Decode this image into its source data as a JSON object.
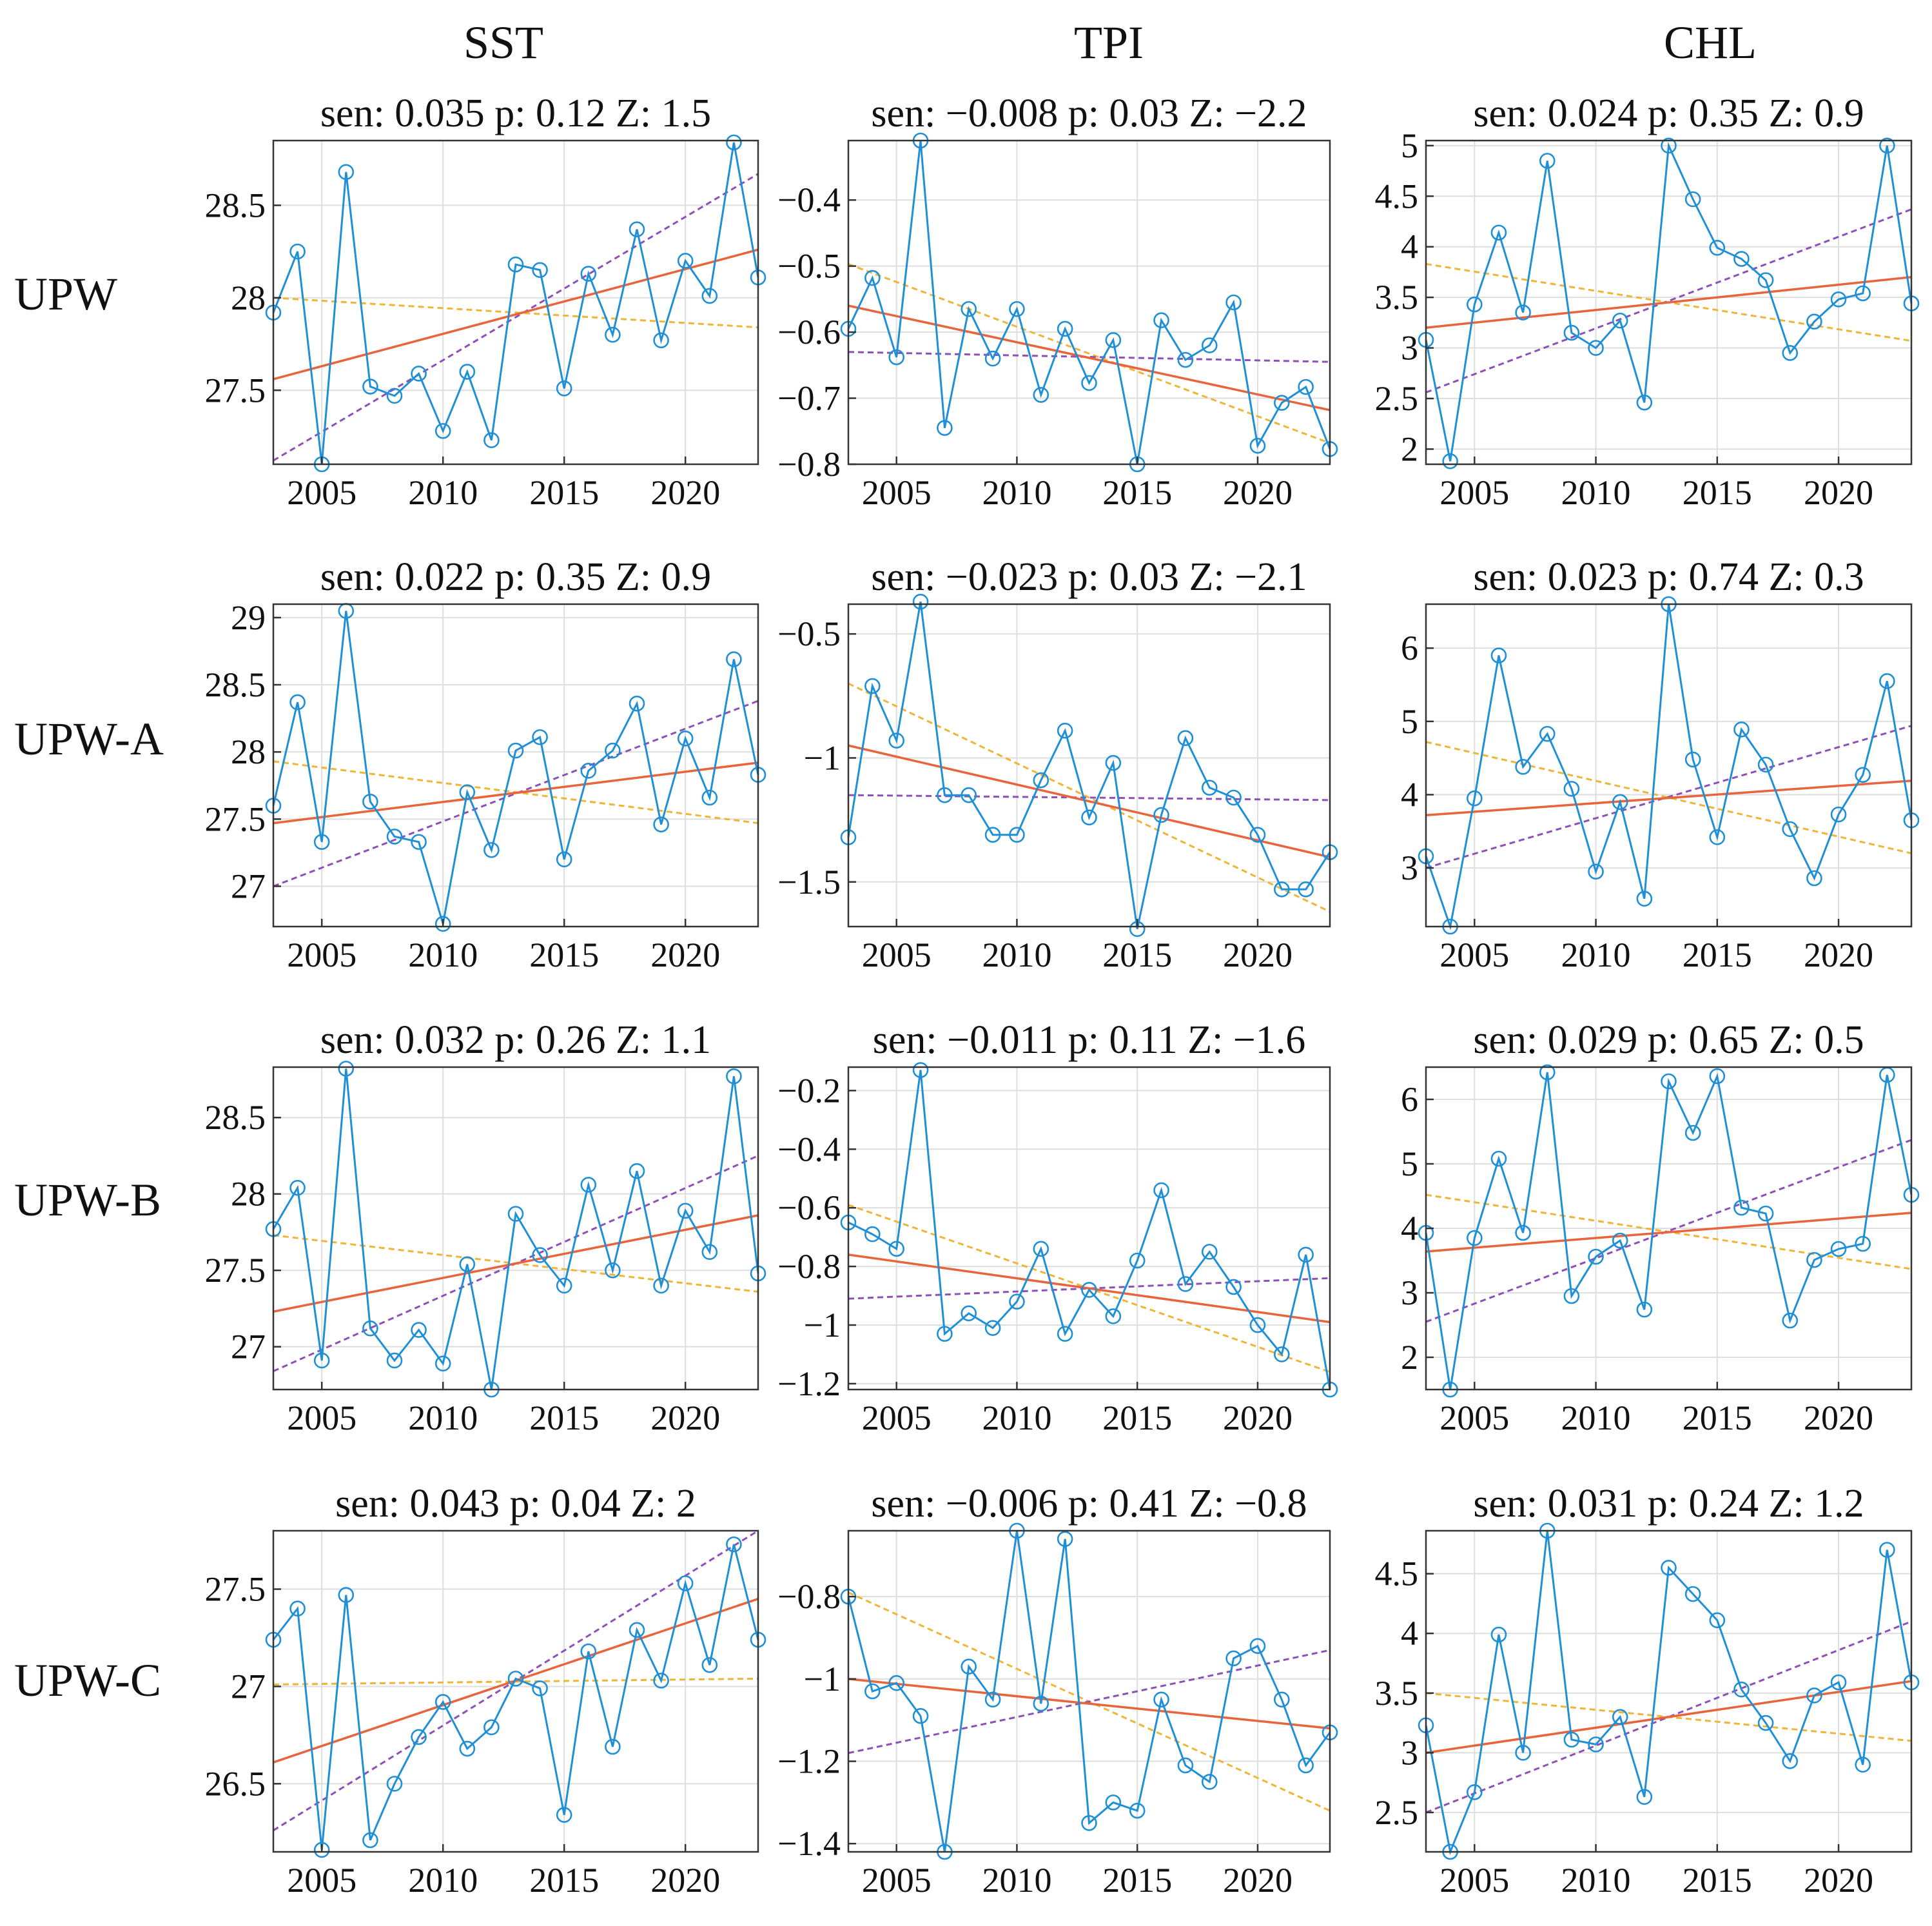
{
  "colors": {
    "data": "#1f8fd6",
    "sen": "#e8643c",
    "ci_low": "#f0b536",
    "ci_high": "#8e4fb8",
    "grid": "#dedede",
    "axis": "#333333"
  },
  "column_titles": [
    "SST",
    "TPI",
    "CHL"
  ],
  "row_labels": [
    "UPW",
    "UPW-A",
    "UPW-B",
    "UPW-C"
  ],
  "chart_data": [
    {
      "type": "line",
      "row": "UPW",
      "column": "SST",
      "title": "sen: 0.035  p: 0.12  Z: 1.5",
      "x": [
        2003,
        2004,
        2005,
        2006,
        2007,
        2008,
        2009,
        2010,
        2011,
        2012,
        2013,
        2014,
        2015,
        2016,
        2017,
        2018,
        2019,
        2020,
        2021,
        2022,
        2023
      ],
      "values": [
        27.92,
        28.25,
        27.1,
        28.68,
        27.52,
        27.47,
        27.59,
        27.28,
        27.6,
        27.23,
        28.18,
        28.15,
        27.51,
        28.13,
        27.8,
        28.37,
        27.77,
        28.2,
        28.01,
        28.84,
        28.11
      ],
      "sen_line": [
        27.56,
        28.26
      ],
      "ci_low_line": [
        28.0,
        27.84
      ],
      "ci_high_line": [
        27.12,
        28.67
      ],
      "xlim": [
        2003,
        2023
      ],
      "ylim": [
        27.1,
        28.85
      ],
      "yticks": [
        27.5,
        28,
        28.5
      ],
      "yticklabels": [
        "27.5",
        "28",
        "28.5"
      ],
      "xticks": [
        2005,
        2010,
        2015,
        2020
      ],
      "xticklabels": [
        "2005",
        "2010",
        "2015",
        "2020"
      ]
    },
    {
      "type": "line",
      "row": "UPW",
      "column": "TPI",
      "title": "sen: −0.008  p: 0.03  Z: −2.2",
      "x": [
        2003,
        2004,
        2005,
        2006,
        2007,
        2008,
        2009,
        2010,
        2011,
        2012,
        2013,
        2014,
        2015,
        2016,
        2017,
        2018,
        2019,
        2020,
        2021,
        2022,
        2023
      ],
      "values": [
        -0.595,
        -0.518,
        -0.638,
        -0.31,
        -0.745,
        -0.565,
        -0.64,
        -0.565,
        -0.695,
        -0.595,
        -0.677,
        -0.612,
        -0.8,
        -0.582,
        -0.642,
        -0.62,
        -0.555,
        -0.772,
        -0.707,
        -0.683,
        -0.777
      ],
      "sen_line": [
        -0.56,
        -0.718
      ],
      "ci_low_line": [
        -0.497,
        -0.768
      ],
      "ci_high_line": [
        -0.63,
        -0.645
      ],
      "xlim": [
        2003,
        2023
      ],
      "ylim": [
        -0.8,
        -0.31
      ],
      "yticks": [
        -0.8,
        -0.7,
        -0.6,
        -0.5,
        -0.4
      ],
      "yticklabels": [
        "−0.8",
        "−0.7",
        "−0.6",
        "−0.5",
        "−0.4"
      ],
      "xticks": [
        2005,
        2010,
        2015,
        2020
      ],
      "xticklabels": [
        "2005",
        "2010",
        "2015",
        "2020"
      ]
    },
    {
      "type": "line",
      "row": "UPW",
      "column": "CHL",
      "title": "sen: 0.024  p: 0.35  Z: 0.9",
      "x": [
        2003,
        2004,
        2005,
        2006,
        2007,
        2008,
        2009,
        2010,
        2011,
        2012,
        2013,
        2014,
        2015,
        2016,
        2017,
        2018,
        2019,
        2020,
        2021,
        2022,
        2023
      ],
      "values": [
        3.08,
        1.88,
        3.43,
        4.14,
        3.35,
        4.85,
        3.15,
        3.0,
        3.27,
        2.46,
        5.0,
        4.47,
        3.99,
        3.88,
        3.67,
        2.95,
        3.26,
        3.48,
        3.54,
        5.0,
        3.44
      ],
      "sen_line": [
        3.2,
        3.7
      ],
      "ci_low_line": [
        3.83,
        3.07
      ],
      "ci_high_line": [
        2.56,
        4.37
      ],
      "xlim": [
        2003,
        2023
      ],
      "ylim": [
        1.85,
        5.05
      ],
      "yticks": [
        2,
        2.5,
        3,
        3.5,
        4,
        4.5,
        5
      ],
      "yticklabels": [
        "2",
        "2.5",
        "3",
        "3.5",
        "4",
        "4.5",
        "5"
      ],
      "xticks": [
        2005,
        2010,
        2015,
        2020
      ],
      "xticklabels": [
        "2005",
        "2010",
        "2015",
        "2020"
      ]
    },
    {
      "type": "line",
      "row": "UPW-A",
      "column": "SST",
      "title": "sen: 0.022  p: 0.35  Z: 0.9",
      "x": [
        2003,
        2004,
        2005,
        2006,
        2007,
        2008,
        2009,
        2010,
        2011,
        2012,
        2013,
        2014,
        2015,
        2016,
        2017,
        2018,
        2019,
        2020,
        2021,
        2022,
        2023
      ],
      "values": [
        27.6,
        28.37,
        27.33,
        29.05,
        27.63,
        27.37,
        27.33,
        26.72,
        27.7,
        27.27,
        28.01,
        28.11,
        27.2,
        27.86,
        28.01,
        28.36,
        27.46,
        28.1,
        27.66,
        28.69,
        27.83
      ],
      "sen_line": [
        27.47,
        27.92
      ],
      "ci_low_line": [
        27.93,
        27.47
      ],
      "ci_high_line": [
        27.0,
        28.38
      ],
      "xlim": [
        2003,
        2023
      ],
      "ylim": [
        26.7,
        29.1
      ],
      "yticks": [
        27,
        27.5,
        28,
        28.5,
        29
      ],
      "yticklabels": [
        "27",
        "27.5",
        "28",
        "28.5",
        "29"
      ],
      "xticks": [
        2005,
        2010,
        2015,
        2020
      ],
      "xticklabels": [
        "2005",
        "2010",
        "2015",
        "2020"
      ]
    },
    {
      "type": "line",
      "row": "UPW-A",
      "column": "TPI",
      "title": "sen: −0.023  p: 0.03  Z: −2.1",
      "x": [
        2003,
        2004,
        2005,
        2006,
        2007,
        2008,
        2009,
        2010,
        2011,
        2012,
        2013,
        2014,
        2015,
        2016,
        2017,
        2018,
        2019,
        2020,
        2021,
        2022,
        2023
      ],
      "values": [
        -1.32,
        -0.71,
        -0.93,
        -0.37,
        -1.15,
        -1.15,
        -1.31,
        -1.31,
        -1.09,
        -0.89,
        -1.24,
        -1.02,
        -1.69,
        -1.23,
        -0.92,
        -1.12,
        -1.16,
        -1.31,
        -1.53,
        -1.53,
        -1.38
      ],
      "sen_line": [
        -0.95,
        -1.4
      ],
      "ci_low_line": [
        -0.7,
        -1.62
      ],
      "ci_high_line": [
        -1.15,
        -1.17
      ],
      "xlim": [
        2003,
        2023
      ],
      "ylim": [
        -1.68,
        -0.38
      ],
      "yticks": [
        -1.5,
        -1,
        -0.5
      ],
      "yticklabels": [
        "−1.5",
        "−1",
        "−0.5"
      ],
      "xticks": [
        2005,
        2010,
        2015,
        2020
      ],
      "xticklabels": [
        "2005",
        "2010",
        "2015",
        "2020"
      ]
    },
    {
      "type": "line",
      "row": "UPW-A",
      "column": "CHL",
      "title": "sen: 0.023  p: 0.74  Z: 0.3",
      "x": [
        2003,
        2004,
        2005,
        2006,
        2007,
        2008,
        2009,
        2010,
        2011,
        2012,
        2013,
        2014,
        2015,
        2016,
        2017,
        2018,
        2019,
        2020,
        2021,
        2022,
        2023
      ],
      "values": [
        3.16,
        2.2,
        3.95,
        5.9,
        4.38,
        4.83,
        4.08,
        2.95,
        3.9,
        2.58,
        6.6,
        4.48,
        3.42,
        4.89,
        4.41,
        3.53,
        2.86,
        3.73,
        4.27,
        5.55,
        3.65
      ],
      "sen_line": [
        3.72,
        4.19
      ],
      "ci_low_line": [
        4.72,
        3.2
      ],
      "ci_high_line": [
        3.0,
        4.94
      ],
      "xlim": [
        2003,
        2023
      ],
      "ylim": [
        2.2,
        6.6
      ],
      "yticks": [
        3,
        4,
        5,
        6
      ],
      "yticklabels": [
        "3",
        "4",
        "5",
        "6"
      ],
      "xticks": [
        2005,
        2010,
        2015,
        2020
      ],
      "xticklabels": [
        "2005",
        "2010",
        "2015",
        "2020"
      ]
    },
    {
      "type": "line",
      "row": "UPW-B",
      "column": "SST",
      "title": "sen: 0.032  p: 0.26  Z: 1.1",
      "x": [
        2003,
        2004,
        2005,
        2006,
        2007,
        2008,
        2009,
        2010,
        2011,
        2012,
        2013,
        2014,
        2015,
        2016,
        2017,
        2018,
        2019,
        2020,
        2021,
        2022,
        2023
      ],
      "values": [
        27.77,
        28.04,
        26.91,
        28.82,
        27.12,
        26.91,
        27.11,
        26.89,
        27.54,
        26.72,
        27.87,
        27.6,
        27.4,
        28.06,
        27.5,
        28.15,
        27.4,
        27.89,
        27.62,
        28.77,
        27.48
      ],
      "sen_line": [
        27.23,
        27.86
      ],
      "ci_low_line": [
        27.73,
        27.36
      ],
      "ci_high_line": [
        26.84,
        28.25
      ],
      "xlim": [
        2003,
        2023
      ],
      "ylim": [
        26.72,
        28.83
      ],
      "yticks": [
        27,
        27.5,
        28,
        28.5
      ],
      "yticklabels": [
        "27",
        "27.5",
        "28",
        "28.5"
      ],
      "xticks": [
        2005,
        2010,
        2015,
        2020
      ],
      "xticklabels": [
        "2005",
        "2010",
        "2015",
        "2020"
      ]
    },
    {
      "type": "line",
      "row": "UPW-B",
      "column": "TPI",
      "title": "sen: −0.011  p: 0.11  Z: −1.6",
      "x": [
        2003,
        2004,
        2005,
        2006,
        2007,
        2008,
        2009,
        2010,
        2011,
        2012,
        2013,
        2014,
        2015,
        2016,
        2017,
        2018,
        2019,
        2020,
        2021,
        2022,
        2023
      ],
      "values": [
        -0.65,
        -0.69,
        -0.74,
        -0.13,
        -1.03,
        -0.96,
        -1.01,
        -0.92,
        -0.74,
        -1.03,
        -0.88,
        -0.97,
        -0.78,
        -0.54,
        -0.86,
        -0.75,
        -0.87,
        -1.0,
        -1.1,
        -0.76,
        -1.22
      ],
      "sen_line": [
        -0.76,
        -0.99
      ],
      "ci_low_line": [
        -0.59,
        -1.16
      ],
      "ci_high_line": [
        -0.91,
        -0.84
      ],
      "xlim": [
        2003,
        2023
      ],
      "ylim": [
        -1.22,
        -0.12
      ],
      "yticks": [
        -1.2,
        -1,
        -0.8,
        -0.6,
        -0.4,
        -0.2
      ],
      "yticklabels": [
        "−1.2",
        "−1",
        "−0.8",
        "−0.6",
        "−0.4",
        "−0.2"
      ],
      "xticks": [
        2005,
        2010,
        2015,
        2020
      ],
      "xticklabels": [
        "2005",
        "2010",
        "2015",
        "2020"
      ]
    },
    {
      "type": "line",
      "row": "UPW-B",
      "column": "CHL",
      "title": "sen: 0.029  p: 0.65  Z: 0.5",
      "x": [
        2003,
        2004,
        2005,
        2006,
        2007,
        2008,
        2009,
        2010,
        2011,
        2012,
        2013,
        2014,
        2015,
        2016,
        2017,
        2018,
        2019,
        2020,
        2021,
        2022,
        2023
      ],
      "values": [
        3.93,
        1.5,
        3.85,
        5.08,
        3.93,
        6.42,
        2.95,
        3.56,
        3.81,
        2.74,
        6.28,
        5.48,
        6.36,
        4.32,
        4.23,
        2.57,
        3.51,
        3.68,
        3.76,
        6.38,
        4.52
      ],
      "sen_line": [
        3.64,
        4.24
      ],
      "ci_low_line": [
        4.52,
        3.37
      ],
      "ci_high_line": [
        2.55,
        5.37
      ],
      "xlim": [
        2003,
        2023
      ],
      "ylim": [
        1.5,
        6.5
      ],
      "yticks": [
        2,
        3,
        4,
        5,
        6
      ],
      "yticklabels": [
        "2",
        "3",
        "4",
        "5",
        "6"
      ],
      "xticks": [
        2005,
        2010,
        2015,
        2020
      ],
      "xticklabels": [
        "2005",
        "2010",
        "2015",
        "2020"
      ]
    },
    {
      "type": "line",
      "row": "UPW-C",
      "column": "SST",
      "title": "sen: 0.043  p: 0.04  Z: 2",
      "x": [
        2003,
        2004,
        2005,
        2006,
        2007,
        2008,
        2009,
        2010,
        2011,
        2012,
        2013,
        2014,
        2015,
        2016,
        2017,
        2018,
        2019,
        2020,
        2021,
        2022,
        2023
      ],
      "values": [
        27.24,
        27.4,
        26.16,
        27.47,
        26.21,
        26.5,
        26.74,
        26.92,
        26.68,
        26.79,
        27.04,
        26.99,
        26.34,
        27.18,
        26.69,
        27.29,
        27.03,
        27.53,
        27.11,
        27.73,
        27.24
      ],
      "sen_line": [
        26.61,
        27.45
      ],
      "ci_low_line": [
        27.01,
        27.04
      ],
      "ci_high_line": [
        26.26,
        27.8
      ],
      "xlim": [
        2003,
        2023
      ],
      "ylim": [
        26.15,
        27.8
      ],
      "yticks": [
        26.5,
        27,
        27.5
      ],
      "yticklabels": [
        "26.5",
        "27",
        "27.5"
      ],
      "xticks": [
        2005,
        2010,
        2015,
        2020
      ],
      "xticklabels": [
        "2005",
        "2010",
        "2015",
        "2020"
      ]
    },
    {
      "type": "line",
      "row": "UPW-C",
      "column": "TPI",
      "title": "sen: −0.006  p: 0.41  Z: −0.8",
      "x": [
        2003,
        2004,
        2005,
        2006,
        2007,
        2008,
        2009,
        2010,
        2011,
        2012,
        2013,
        2014,
        2015,
        2016,
        2017,
        2018,
        2019,
        2020,
        2021,
        2022,
        2023
      ],
      "values": [
        -0.8,
        -1.03,
        -1.01,
        -1.09,
        -1.42,
        -0.97,
        -1.05,
        -0.64,
        -1.06,
        -0.66,
        -1.35,
        -1.3,
        -1.32,
        -1.05,
        -1.21,
        -1.25,
        -0.95,
        -0.92,
        -1.05,
        -1.21,
        -1.13
      ],
      "sen_line": [
        -1.0,
        -1.12
      ],
      "ci_low_line": [
        -0.79,
        -1.32
      ],
      "ci_high_line": [
        -1.18,
        -0.93
      ],
      "xlim": [
        2003,
        2023
      ],
      "ylim": [
        -1.42,
        -0.64
      ],
      "yticks": [
        -1.4,
        -1.2,
        -1,
        -0.8
      ],
      "yticklabels": [
        "−1.4",
        "−1.2",
        "−1",
        "−0.8"
      ],
      "xticks": [
        2005,
        2010,
        2015,
        2020
      ],
      "xticklabels": [
        "2005",
        "2010",
        "2015",
        "2020"
      ]
    },
    {
      "type": "line",
      "row": "UPW-C",
      "column": "CHL",
      "title": "sen: 0.031  p: 0.24  Z: 1.2",
      "x": [
        2003,
        2004,
        2005,
        2006,
        2007,
        2008,
        2009,
        2010,
        2011,
        2012,
        2013,
        2014,
        2015,
        2016,
        2017,
        2018,
        2019,
        2020,
        2021,
        2022,
        2023
      ],
      "values": [
        3.23,
        2.17,
        2.67,
        3.99,
        3.0,
        4.86,
        3.11,
        3.07,
        3.3,
        2.63,
        4.55,
        4.33,
        4.11,
        3.53,
        3.25,
        2.93,
        3.48,
        3.59,
        2.9,
        4.7,
        3.59
      ],
      "sen_line": [
        3.0,
        3.6
      ],
      "ci_low_line": [
        3.5,
        3.1
      ],
      "ci_high_line": [
        2.5,
        4.1
      ],
      "xlim": [
        2003,
        2023
      ],
      "ylim": [
        2.17,
        4.86
      ],
      "yticks": [
        2.5,
        3,
        3.5,
        4,
        4.5
      ],
      "yticklabels": [
        "2.5",
        "3",
        "3.5",
        "4",
        "4.5"
      ],
      "xticks": [
        2005,
        2010,
        2015,
        2020
      ],
      "xticklabels": [
        "2005",
        "2010",
        "2015",
        "2020"
      ]
    }
  ]
}
